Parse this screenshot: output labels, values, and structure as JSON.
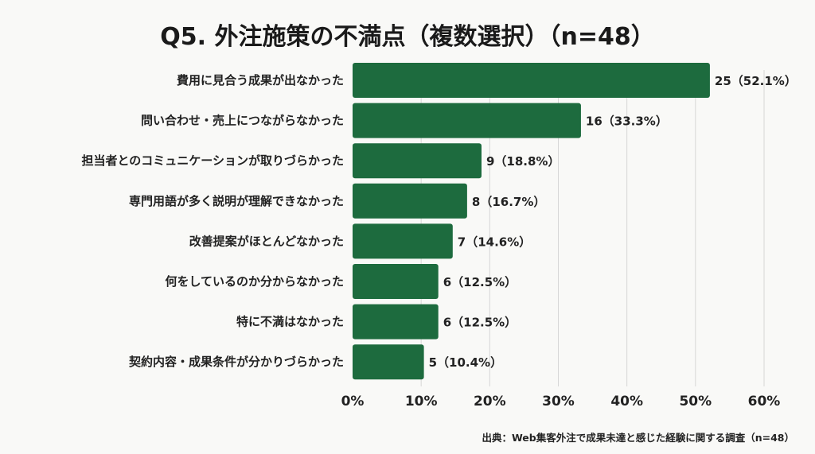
{
  "chart_data": {
    "type": "bar",
    "orientation": "horizontal",
    "title": "Q5. 外注施策の不満点（複数選択）（n=48）",
    "categories": [
      "費用に見合う成果が出なかった",
      "問い合わせ・売上につながらなかった",
      "担当者とのコミュニケーションが取りづらかった",
      "専門用語が多く説明が理解できなかった",
      "改善提案がほとんどなかった",
      "何をしているのか分からなかった",
      "特に不満はなかった",
      "契約内容・成果条件が分かりづらかった"
    ],
    "counts": [
      25,
      16,
      9,
      8,
      7,
      6,
      6,
      5
    ],
    "values": [
      52.1,
      33.3,
      18.8,
      16.7,
      14.6,
      12.5,
      12.5,
      10.4
    ],
    "data_labels": [
      "25（52.1%）",
      "16（33.3%）",
      "9（18.8%）",
      "8（16.7%）",
      "7（14.6%）",
      "6（12.5%）",
      "6（12.5%）",
      "5（10.4%）"
    ],
    "xlim": [
      0,
      60
    ],
    "x_ticks": [
      "0%",
      "10%",
      "20%",
      "30%",
      "40%",
      "50%",
      "60%"
    ],
    "xlabel": "",
    "ylabel": "",
    "grid": "vertical",
    "bar_color": "#1d6b3e",
    "source": "出典：Web集客外注で成果未達と感じた経験に関する調査（n=48）"
  }
}
